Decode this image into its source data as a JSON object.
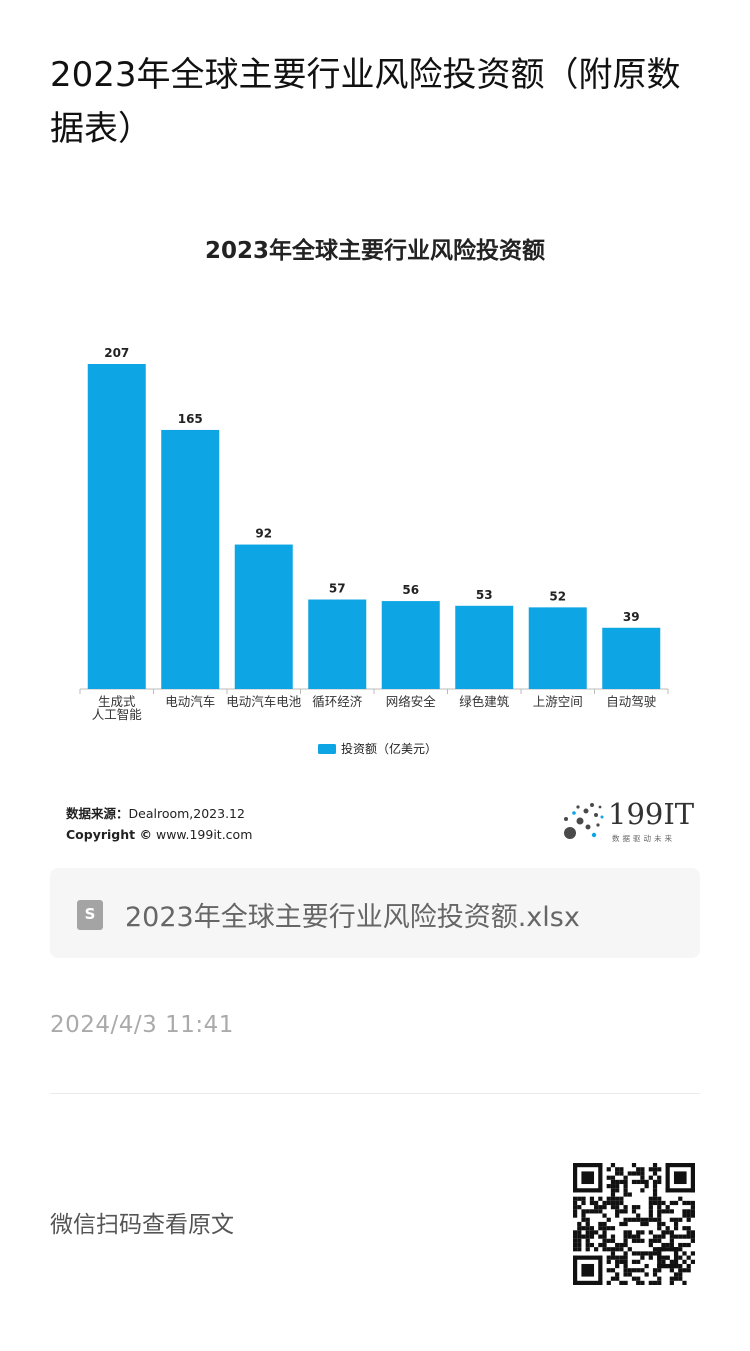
{
  "page": {
    "title": "2023年全球主要行业风险投资额（附原数据表）"
  },
  "chart_data": {
    "type": "bar",
    "title": "2023年全球主要行业风险投资额",
    "categories": [
      "生成式人工智能",
      "电动汽车",
      "电动汽车电池",
      "循环经济",
      "网络安全",
      "绿色建筑",
      "上游空间",
      "自动驾驶"
    ],
    "category_lines": [
      [
        "生成式",
        "人工智能"
      ],
      [
        "电动汽车"
      ],
      [
        "电动汽车电池"
      ],
      [
        "循环经济"
      ],
      [
        "网络安全"
      ],
      [
        "绿色建筑"
      ],
      [
        "上游空间"
      ],
      [
        "自动驾驶"
      ]
    ],
    "series": [
      {
        "name": "投资额（亿美元）",
        "values": [
          207,
          165,
          92,
          57,
          56,
          53,
          52,
          39
        ],
        "color": "#0ea5e4"
      }
    ],
    "ylim": [
      0,
      207
    ],
    "legend_position": "bottom-center",
    "grid": false
  },
  "source": {
    "label": "数据来源：",
    "value": "Dealroom,2023.12",
    "copyright_label": "Copyright ©",
    "copyright_value": "www.199it.com"
  },
  "logo": {
    "text": "199IT",
    "subtitle": "数据驱动未来"
  },
  "attachment": {
    "file_name": "2023年全球主要行业风险投资额.xlsx",
    "icon": "spreadsheet-file-icon",
    "icon_letter": "S"
  },
  "meta": {
    "timestamp": "2024/4/3 11:41"
  },
  "footer": {
    "scan_text": "微信扫码查看原文",
    "qr_icon": "qr-code-icon"
  }
}
